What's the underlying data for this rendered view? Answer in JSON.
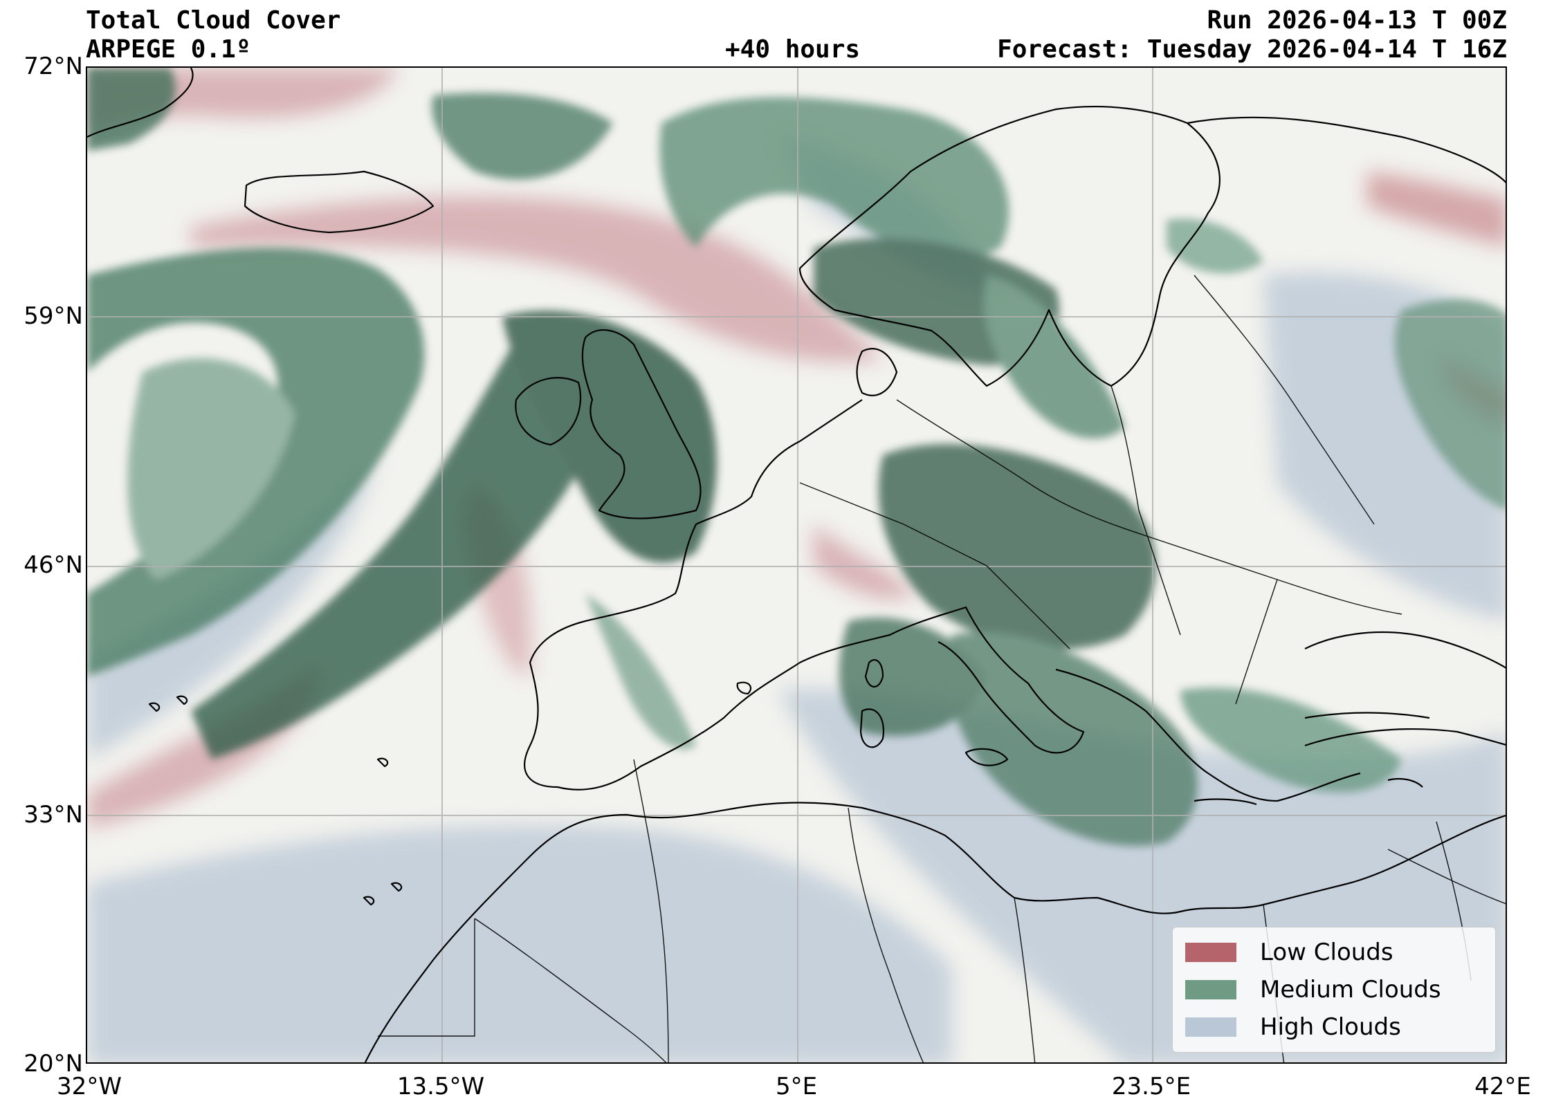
{
  "header": {
    "title": "Total Cloud Cover",
    "model": "ARPEGE 0.1º",
    "run": "Run 2026-04-13 T 00Z",
    "lead": "+40 hours",
    "forecast": "Forecast: Tuesday 2026-04-14 T 16Z"
  },
  "axes": {
    "lat_labels": [
      "72°N",
      "59°N",
      "46°N",
      "33°N",
      "20°N"
    ],
    "lon_labels": [
      "32°W",
      "13.5°W",
      "5°E",
      "23.5°E",
      "42°E"
    ],
    "lat_values": [
      72,
      59,
      46,
      33,
      20
    ],
    "lon_values": [
      -32,
      -13.5,
      5,
      23.5,
      42
    ],
    "lat_range": [
      20,
      72
    ],
    "lon_range": [
      -32,
      42
    ],
    "grid": true
  },
  "legend": {
    "placement": "bottom-right",
    "items": [
      {
        "label": "Low Clouds",
        "color": "#b5646b"
      },
      {
        "label": "Medium Clouds",
        "color": "#6f9a84"
      },
      {
        "label": "High Clouds",
        "color": "#b9c7d6"
      }
    ]
  },
  "colors": {
    "background": "#f2f2ee",
    "low": "#c98a8f",
    "medium": "#3f6e58",
    "high": "#b9c7d6",
    "coast": "#000000",
    "grid": "#b0b0b0"
  }
}
